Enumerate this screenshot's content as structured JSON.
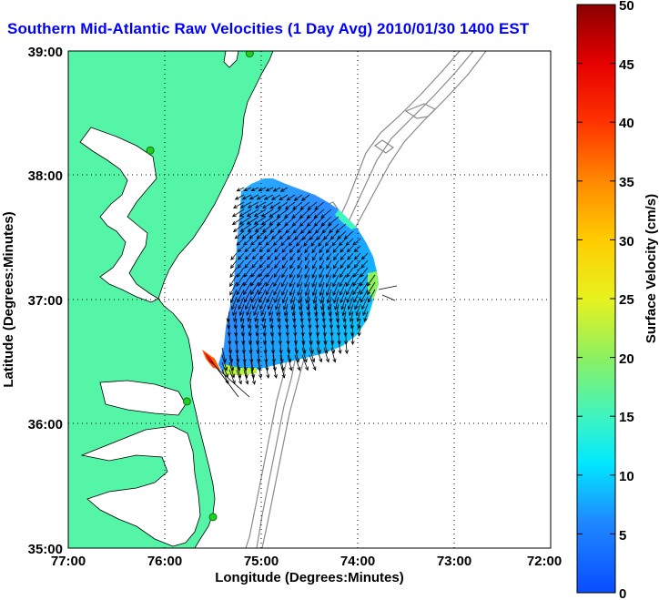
{
  "title": "Southern Mid-Atlantic Raw Velocities (1 Day Avg) 2010/01/30 1400 EST",
  "xlabel": "Longitude (Degrees:Minutes)",
  "ylabel": "Latitude (Degrees:Minutes)",
  "x_ticks": [
    "77:00",
    "76:00",
    "75:00",
    "74:00",
    "73:00",
    "72:00"
  ],
  "y_ticks": [
    "39:00",
    "38:00",
    "37:00",
    "36:00",
    "35:00"
  ],
  "colorbar": {
    "label": "Surface Velocity (cm/s)",
    "min": 0,
    "max": 50,
    "ticks": [
      "0",
      "5",
      "10",
      "15",
      "20",
      "25",
      "30",
      "35",
      "40",
      "45",
      "50"
    ]
  },
  "colors": {
    "land": "#55f5a8",
    "title": "#0000ff",
    "grid": "#000000",
    "bathymetry": "#8a8a8a",
    "station": "#22cc22"
  },
  "chart_data": {
    "type": "vector-field",
    "xlim": [
      -77,
      -72
    ],
    "ylim": [
      35,
      39
    ],
    "grid": true,
    "stations": [
      {
        "lon": -75.12,
        "lat": 38.98
      },
      {
        "lon": -76.15,
        "lat": 38.2
      },
      {
        "lon": -75.77,
        "lat": 36.18
      },
      {
        "lon": -75.5,
        "lat": 35.25
      }
    ]
  }
}
